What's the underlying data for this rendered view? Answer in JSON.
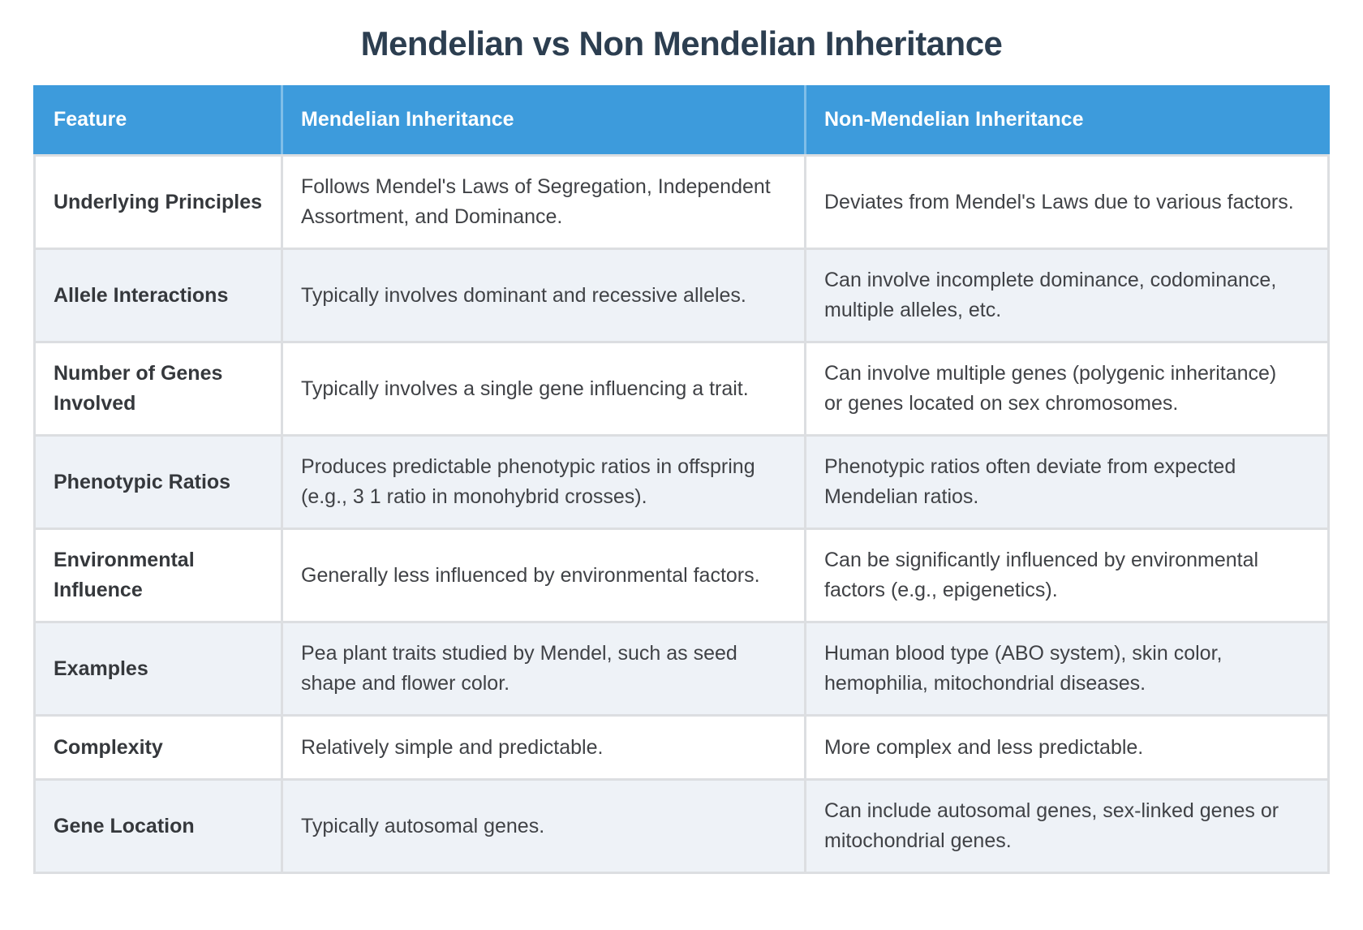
{
  "page": {
    "title": "Mendelian vs Non Mendelian Inheritance"
  },
  "theme": {
    "header_bg": "#3d9bdc",
    "header_text": "#ffffff",
    "row_alt_bg": "#eef2f7",
    "row_bg": "#ffffff",
    "border": "#dcdee1",
    "title_text": "#2c3e50",
    "feature_text": "#35383c",
    "body_text": "#404246"
  },
  "table": {
    "columns": [
      "Feature",
      "Mendelian Inheritance",
      "Non-Mendelian Inheritance"
    ],
    "rows": [
      {
        "feature": "Underlying Principles",
        "mendelian": "Follows Mendel's Laws of Segregation, Independent Assortment, and Dominance.",
        "non_mendelian": "Deviates from Mendel's Laws due to various factors."
      },
      {
        "feature": "Allele Interactions",
        "mendelian": "Typically involves dominant and recessive alleles.",
        "non_mendelian": "Can involve incomplete dominance, codominance, multiple alleles, etc."
      },
      {
        "feature": "Number of Genes Involved",
        "mendelian": "Typically involves a single gene influencing a trait.",
        "non_mendelian": "Can involve multiple genes (polygenic inheritance) or genes located on sex chromosomes."
      },
      {
        "feature": "Phenotypic Ratios",
        "mendelian": "Produces predictable phenotypic ratios in offspring (e.g., 3 1 ratio in monohybrid crosses).",
        "non_mendelian": "Phenotypic ratios often deviate from expected Mendelian ratios."
      },
      {
        "feature": "Environmental Influence",
        "mendelian": "Generally less influenced by environmental factors.",
        "non_mendelian": "Can be significantly influenced by environmental factors (e.g., epigenetics)."
      },
      {
        "feature": "Examples",
        "mendelian": "Pea plant traits studied by Mendel, such as seed shape and flower color.",
        "non_mendelian": "Human blood type (ABO system), skin color, hemophilia, mitochondrial diseases."
      },
      {
        "feature": "Complexity",
        "mendelian": "Relatively simple and predictable.",
        "non_mendelian": "More complex and less predictable."
      },
      {
        "feature": "Gene Location",
        "mendelian": "Typically autosomal genes.",
        "non_mendelian": "Can include autosomal genes, sex-linked genes or mitochondrial genes."
      }
    ]
  }
}
